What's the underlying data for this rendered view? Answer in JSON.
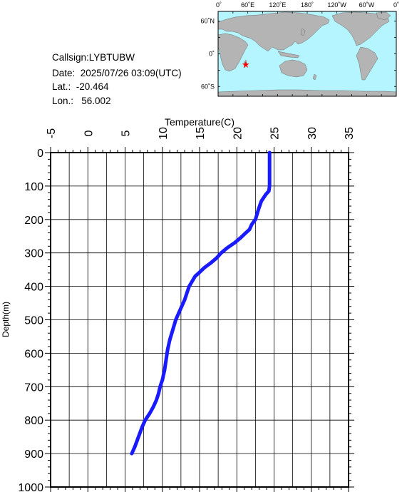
{
  "info": {
    "callsign": "Callsign:LYBTUBW",
    "date": "Date:  2025/07/26 03:09(UTC)",
    "lat": "Lat.:  -20.464",
    "lon": "Lon.:   56.002"
  },
  "map": {
    "lon_labels": [
      "0˚",
      "60˚E",
      "120˚E",
      "180˚",
      "120˚W",
      "60˚W",
      "0˚"
    ],
    "lat_labels": [
      "60˚N",
      "0˚",
      "60˚S"
    ],
    "marker": {
      "lat": -20.464,
      "lon": 56.002
    },
    "colors": {
      "ocean": "#b5f5ff",
      "land": "#b4b4b4",
      "marker": "#ff0000"
    }
  },
  "chart_data": {
    "type": "line",
    "xlabel": "Temperature(C)",
    "ylabel": "Depth(m)",
    "xlim": [
      -5,
      35
    ],
    "ylim": [
      1000,
      0
    ],
    "xticks": [
      "-5",
      "0",
      "5",
      "10",
      "15",
      "20",
      "25",
      "30",
      "35"
    ],
    "yticks": [
      "0",
      "100",
      "200",
      "300",
      "400",
      "500",
      "600",
      "700",
      "800",
      "900",
      "1000"
    ],
    "grid": true,
    "line_color": "#1a1aff",
    "series": [
      {
        "x": [
          24.4,
          24.4,
          24.4,
          24.3,
          23.9,
          23.3,
          22.9,
          22.5,
          22.0,
          21.7,
          21.2,
          20.5,
          19.7,
          18.7,
          17.9,
          17.3,
          16.5,
          15.6,
          14.9,
          14.4,
          14.0,
          13.6,
          13.3,
          13.0,
          12.6,
          12.2,
          11.8,
          11.4,
          11.0,
          10.7,
          10.5,
          10.3,
          10.0,
          9.7,
          9.5,
          9.2,
          8.8,
          8.3,
          7.7,
          7.3,
          6.8,
          6.3,
          5.9
        ],
        "y": [
          0,
          50,
          100,
          115,
          125,
          145,
          170,
          200,
          215,
          230,
          240,
          255,
          270,
          285,
          300,
          315,
          330,
          345,
          360,
          370,
          385,
          400,
          420,
          440,
          460,
          480,
          500,
          530,
          560,
          590,
          620,
          650,
          680,
          700,
          720,
          740,
          760,
          780,
          800,
          820,
          850,
          880,
          900
        ]
      }
    ]
  }
}
